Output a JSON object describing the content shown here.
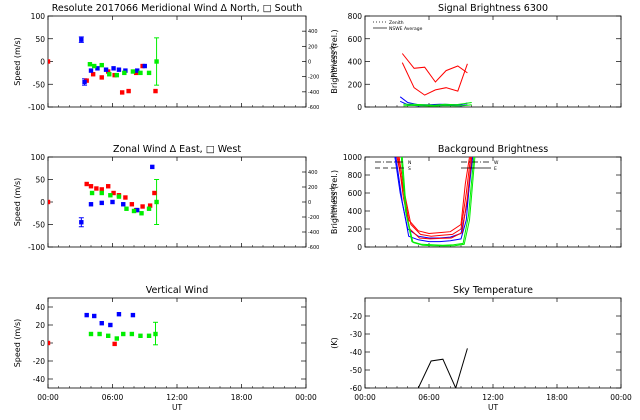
{
  "chart_data": [
    {
      "type": "scatter",
      "id": "meridional",
      "title": "Resolute  2017066    Meridional Wind   Δ North, □ South",
      "ylabel": "Speed (m/s)",
      "ylabel_right": "Speed (m/s)",
      "ylim": [
        -100,
        100
      ],
      "yticks": [
        -100,
        -50,
        0,
        50,
        100
      ],
      "ylim_right": [
        -600,
        600
      ],
      "yticks_right": [
        -600,
        -400,
        -200,
        0,
        200,
        400
      ],
      "xlim": [
        0,
        24
      ],
      "series": [
        {
          "color": "#ff0000",
          "points": [
            [
              0,
              0
            ],
            [
              3.6,
              -42
            ],
            [
              4.2,
              -28
            ],
            [
              5.0,
              -35
            ],
            [
              5.6,
              -22
            ],
            [
              6.2,
              -30
            ],
            [
              6.9,
              -68
            ],
            [
              7.5,
              -65
            ],
            [
              8.2,
              -25
            ],
            [
              8.8,
              -10
            ],
            [
              10.0,
              -65
            ]
          ]
        },
        {
          "color": "#0000ff",
          "points": [
            [
              3.1,
              48
            ],
            [
              3.4,
              -45
            ],
            [
              4.0,
              -20
            ],
            [
              4.6,
              -15
            ],
            [
              5.4,
              -18
            ],
            [
              6.1,
              -15
            ],
            [
              6.6,
              -18
            ],
            [
              7.2,
              -20
            ],
            [
              8.3,
              -20
            ],
            [
              9.0,
              -10
            ]
          ]
        },
        {
          "color": "#00ee00",
          "points": [
            [
              3.9,
              -6
            ],
            [
              4.3,
              -10
            ],
            [
              5.0,
              -8
            ],
            [
              5.7,
              -28
            ],
            [
              6.4,
              -30
            ],
            [
              7.1,
              -25
            ],
            [
              7.9,
              -22
            ],
            [
              8.6,
              -25
            ],
            [
              9.4,
              -25
            ],
            [
              10.1,
              0
            ]
          ]
        }
      ],
      "errorbars": [
        {
          "color": "#0000ff",
          "x": 3.1,
          "y": 48,
          "lo": 42,
          "hi": 54
        },
        {
          "color": "#0000ff",
          "x": 3.4,
          "y": -45,
          "lo": -52,
          "hi": -38
        },
        {
          "color": "#00ee00",
          "x": 10.1,
          "y": 0,
          "lo": -52,
          "hi": 52
        }
      ]
    },
    {
      "type": "line",
      "id": "signal",
      "title": "Signal Brightness        6300",
      "ylabel": "Brightness (rel.)",
      "ylim": [
        0,
        800
      ],
      "yticks": [
        0,
        200,
        400,
        600,
        800
      ],
      "xlim": [
        0,
        24
      ],
      "legend": [
        {
          "label": "Zenith",
          "style": "dotted"
        },
        {
          "label": "NSWE Average",
          "style": "solid"
        }
      ],
      "series": [
        {
          "color": "#ff0000",
          "x": [
            3.5,
            4.6,
            5.6,
            6.6,
            7.6,
            8.7,
            9.6
          ],
          "y": [
            470,
            340,
            350,
            220,
            320,
            360,
            300
          ]
        },
        {
          "color": "#ff0000",
          "x": [
            3.5,
            4.6,
            5.6,
            6.6,
            7.6,
            8.7,
            9.6
          ],
          "y": [
            390,
            170,
            105,
            150,
            170,
            140,
            380
          ]
        },
        {
          "color": "#0000ff",
          "x": [
            3.3,
            4.0,
            5.0,
            6.0,
            7.0,
            8.0,
            9.0,
            9.6
          ],
          "y": [
            90,
            40,
            20,
            20,
            25,
            22,
            20,
            35
          ]
        },
        {
          "color": "#0000ff",
          "x": [
            3.3,
            4.0,
            5.0,
            6.0,
            7.0,
            8.0,
            9.0,
            9.6
          ],
          "y": [
            50,
            20,
            10,
            15,
            12,
            15,
            10,
            20
          ]
        },
        {
          "color": "#00ee00",
          "x": [
            3.6,
            4.5,
            5.5,
            6.5,
            7.5,
            8.5,
            9.3,
            10.0
          ],
          "y": [
            25,
            25,
            20,
            15,
            25,
            20,
            30,
            40
          ]
        },
        {
          "color": "#00ee00",
          "x": [
            3.6,
            4.5,
            5.5,
            6.5,
            7.5,
            8.5,
            9.3,
            10.0
          ],
          "y": [
            10,
            15,
            10,
            8,
            12,
            10,
            12,
            20
          ]
        }
      ]
    },
    {
      "type": "scatter",
      "id": "zonal",
      "title": "Zonal Wind      Δ East, □ West",
      "ylabel": "Speed (m/s)",
      "ylabel_right": "Speed (m/s)",
      "ylim": [
        -100,
        100
      ],
      "yticks": [
        -100,
        -50,
        0,
        50,
        100
      ],
      "ylim_right": [
        -600,
        600
      ],
      "yticks_right": [
        -600,
        -400,
        -200,
        0,
        200,
        400
      ],
      "xlim": [
        0,
        24
      ],
      "series": [
        {
          "color": "#ff0000",
          "points": [
            [
              0,
              0
            ],
            [
              3.6,
              40
            ],
            [
              4.0,
              35
            ],
            [
              4.5,
              30
            ],
            [
              5.0,
              28
            ],
            [
              5.6,
              35
            ],
            [
              6.1,
              20
            ],
            [
              6.6,
              15
            ],
            [
              7.2,
              10
            ],
            [
              7.8,
              -5
            ],
            [
              8.2,
              -18
            ],
            [
              8.8,
              -10
            ],
            [
              9.5,
              -8
            ],
            [
              9.9,
              20
            ]
          ]
        },
        {
          "color": "#0000ff",
          "points": [
            [
              3.1,
              -45
            ],
            [
              4.0,
              -5
            ],
            [
              5.0,
              -2
            ],
            [
              6.0,
              0
            ],
            [
              7.0,
              -5
            ],
            [
              8.3,
              -18
            ],
            [
              9.7,
              78
            ]
          ]
        },
        {
          "color": "#00ee00",
          "points": [
            [
              4.1,
              20
            ],
            [
              5.0,
              20
            ],
            [
              5.8,
              15
            ],
            [
              6.6,
              12
            ],
            [
              7.3,
              -15
            ],
            [
              8.0,
              -20
            ],
            [
              8.7,
              -25
            ],
            [
              9.4,
              -15
            ],
            [
              10.1,
              0
            ]
          ]
        }
      ],
      "errorbars": [
        {
          "color": "#0000ff",
          "x": 3.1,
          "y": -45,
          "lo": -55,
          "hi": -35
        },
        {
          "color": "#00ee00",
          "x": 10.1,
          "y": 0,
          "lo": -50,
          "hi": 50
        }
      ]
    },
    {
      "type": "line",
      "id": "background",
      "title": "Background Brightness",
      "ylabel": "Brightness (rel.)",
      "ylim": [
        0,
        1000
      ],
      "yticks": [
        0,
        200,
        400,
        600,
        800,
        1000
      ],
      "xlim": [
        0,
        24
      ],
      "legend": [
        {
          "label": "N",
          "style": "dashdot"
        },
        {
          "label": "S",
          "style": "dashed"
        },
        {
          "label": "W",
          "style": "dashdot"
        },
        {
          "label": "E",
          "style": "solid"
        }
      ],
      "series": [
        {
          "color": "#0000ff",
          "x": [
            2.9,
            3.5,
            4.1,
            5.0,
            6.0,
            7.0,
            8.0,
            9.0,
            9.5,
            10.0
          ],
          "y": [
            1000,
            500,
            120,
            80,
            60,
            60,
            70,
            90,
            300,
            1000
          ]
        },
        {
          "color": "#0000ff",
          "x": [
            2.8,
            3.3,
            4.0,
            5.0,
            6.0,
            7.0,
            8.0,
            9.0,
            9.6,
            10.1
          ],
          "y": [
            1000,
            600,
            200,
            120,
            100,
            100,
            110,
            150,
            500,
            1000
          ]
        },
        {
          "color": "#ff0000",
          "x": [
            3.0,
            3.5,
            4.1,
            5.0,
            6.0,
            7.0,
            8.0,
            9.0,
            9.4,
            9.8
          ],
          "y": [
            1000,
            700,
            300,
            180,
            150,
            160,
            170,
            250,
            700,
            1000
          ]
        },
        {
          "color": "#ff0000",
          "x": [
            3.2,
            3.7,
            4.3,
            5.2,
            6.2,
            7.2,
            8.2,
            9.0,
            9.5,
            9.9
          ],
          "y": [
            1000,
            600,
            250,
            140,
            120,
            130,
            140,
            200,
            600,
            1000
          ]
        },
        {
          "color": "#ff0000",
          "x": [
            3.1,
            3.6,
            4.2,
            5.1,
            6.1,
            7.1,
            8.1,
            9.1,
            9.6,
            10.0
          ],
          "y": [
            1000,
            550,
            200,
            100,
            90,
            95,
            100,
            160,
            550,
            1000
          ]
        },
        {
          "color": "#00ee00",
          "x": [
            3.4,
            3.8,
            4.4,
            5.3,
            6.3,
            7.3,
            8.3,
            9.2,
            9.7,
            10.2
          ],
          "y": [
            1000,
            400,
            60,
            30,
            25,
            20,
            25,
            40,
            350,
            1000
          ]
        },
        {
          "color": "#00ee00",
          "x": [
            3.5,
            3.9,
            4.5,
            5.4,
            6.4,
            7.4,
            8.4,
            9.3,
            9.8,
            10.3
          ],
          "y": [
            1000,
            350,
            50,
            20,
            15,
            12,
            15,
            30,
            300,
            1000
          ]
        }
      ]
    },
    {
      "type": "scatter",
      "id": "vertical",
      "title": "Vertical Wind",
      "ylabel": "Speed (m/s)",
      "ylim": [
        -50,
        50
      ],
      "yticks": [
        -40,
        -20,
        0,
        20,
        40
      ],
      "xlim": [
        0,
        24
      ],
      "series": [
        {
          "color": "#ff0000",
          "points": [
            [
              0,
              0
            ],
            [
              6.2,
              -1
            ]
          ]
        },
        {
          "color": "#0000ff",
          "points": [
            [
              3.6,
              31
            ],
            [
              4.3,
              30
            ],
            [
              5.0,
              22
            ],
            [
              5.8,
              20
            ],
            [
              6.6,
              32
            ],
            [
              7.9,
              31
            ]
          ]
        },
        {
          "color": "#00ee00",
          "points": [
            [
              4.0,
              10
            ],
            [
              4.8,
              10
            ],
            [
              5.6,
              8
            ],
            [
              6.4,
              5
            ],
            [
              7.0,
              10
            ],
            [
              7.8,
              10
            ],
            [
              8.6,
              8
            ],
            [
              9.4,
              8
            ],
            [
              10.0,
              10
            ]
          ]
        }
      ],
      "errorbars": [
        {
          "color": "#00ee00",
          "x": 10.0,
          "y": 10,
          "lo": -2,
          "hi": 23
        }
      ]
    },
    {
      "type": "line",
      "id": "skytemp",
      "title": "Sky Temperature",
      "ylabel": "(K)",
      "ylim": [
        -60,
        -10
      ],
      "yticks": [
        -60,
        -50,
        -40,
        -30,
        -20
      ],
      "xlim": [
        0,
        24
      ],
      "series": [
        {
          "color": "#000000",
          "x": [
            5.0,
            6.2,
            7.3,
            8.5,
            9.6
          ],
          "y": [
            -60,
            -45,
            -44,
            -60,
            -38
          ]
        }
      ]
    }
  ],
  "xaxis": {
    "ticks": [
      0,
      6,
      12,
      18,
      24
    ],
    "ticklabels": [
      "00:00",
      "06:00",
      "12:00",
      "18:00",
      "00:00"
    ],
    "label": "UT"
  }
}
